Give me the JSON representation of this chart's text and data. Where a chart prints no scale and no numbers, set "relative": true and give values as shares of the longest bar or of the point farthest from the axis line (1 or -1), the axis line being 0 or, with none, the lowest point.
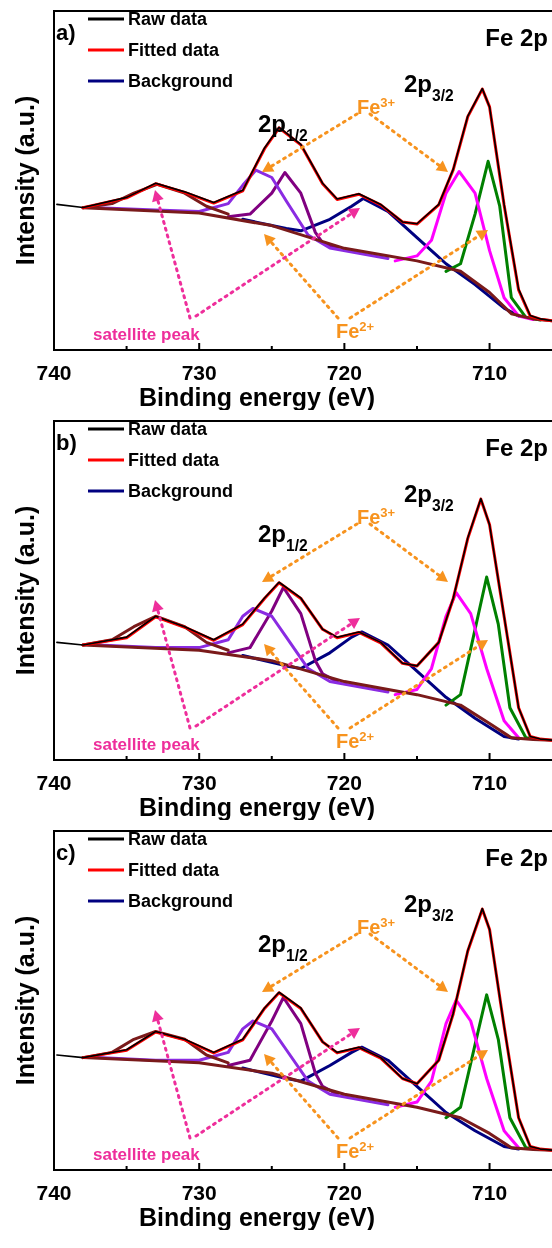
{
  "chart_data": [
    {
      "type": "line",
      "title": "a)",
      "xlabel": "Binding energy (eV)",
      "ylabel": "Intensity (a.u.)",
      "relative": true,
      "legend": "top left",
      "xlim": [
        740,
        705.7
      ],
      "xticks": [
        740,
        {
          "value": 735,
          "label": null
        },
        730,
        {
          "value": 725,
          "label": null
        },
        720,
        {
          "value": 715,
          "label": null
        },
        710
      ],
      "annotations": [
        "Fe 2p",
        "2p$_{1/2}$",
        "2p$_{3/2}$",
        "Fe$^{3+}$",
        "Fe$^{2+}$",
        "satellite peak"
      ],
      "series": [
        {
          "name": "Raw data",
          "color": "#000000",
          "x": [
            739.8,
            738,
            735,
            733,
            731,
            729,
            727,
            725.5,
            724.5,
            723,
            721.5,
            720.5,
            719,
            717.5,
            716,
            715,
            713.5,
            712.5,
            711.5,
            710.5,
            710,
            709,
            708,
            707.2,
            706.5,
            705.7
          ],
          "values": [
            0.557,
            0.545,
            0.584,
            0.638,
            0.605,
            0.564,
            0.611,
            0.773,
            0.852,
            0.787,
            0.638,
            0.578,
            0.598,
            0.557,
            0.49,
            0.483,
            0.557,
            0.692,
            0.895,
            1.0,
            0.93,
            0.557,
            0.233,
            0.132,
            0.119,
            0.112
          ]
        },
        {
          "name": "Fitted data",
          "color": "#ff0000",
          "x": [
            738,
            735,
            733,
            731,
            729,
            727,
            725.5,
            724.5,
            723,
            721.5,
            720.5,
            719,
            717.5,
            716,
            715,
            713.5,
            712.5,
            711.5,
            710.5,
            710,
            709,
            708,
            707.2,
            706.5,
            705.7
          ],
          "values": [
            0.544,
            0.582,
            0.636,
            0.603,
            0.562,
            0.609,
            0.77,
            0.85,
            0.785,
            0.636,
            0.576,
            0.596,
            0.555,
            0.49,
            0.482,
            0.555,
            0.69,
            0.893,
            0.998,
            0.93,
            0.555,
            0.23,
            0.13,
            0.118,
            0.112
          ]
        },
        {
          "name": "Background",
          "color": "#000080",
          "x": [
            727,
            724,
            723,
            721,
            719.5,
            718.7,
            717,
            715,
            713,
            711,
            709,
            708
          ],
          "values": [
            0.5,
            0.465,
            0.456,
            0.5,
            0.55,
            0.58,
            0.53,
            0.43,
            0.33,
            0.25,
            0.16,
            0.13
          ]
        },
        {
          "color": "#008000",
          "x": [
            713,
            712,
            711,
            710.1,
            709.3,
            708.5,
            707.5,
            706.5
          ],
          "values": [
            0.301,
            0.33,
            0.52,
            0.722,
            0.55,
            0.2,
            0.125,
            0.115
          ]
        },
        {
          "color": "#ff00ff",
          "x": [
            716.5,
            715,
            714,
            713,
            712.1,
            711,
            710,
            709,
            708,
            707
          ],
          "values": [
            0.341,
            0.36,
            0.42,
            0.6,
            0.683,
            0.6,
            0.38,
            0.2,
            0.13,
            0.117
          ]
        },
        {
          "color": "#800080",
          "x": [
            728,
            726.5,
            725,
            724.1,
            723,
            722,
            721.5,
            720.5
          ],
          "values": [
            0.51,
            0.52,
            0.6,
            0.679,
            0.6,
            0.45,
            0.41,
            0.39
          ]
        },
        {
          "color": "#8a2be2",
          "x": [
            737,
            733,
            730,
            728,
            727,
            726.1,
            725,
            724,
            722.5,
            721,
            719,
            717
          ],
          "values": [
            0.544,
            0.536,
            0.53,
            0.56,
            0.63,
            0.688,
            0.66,
            0.57,
            0.44,
            0.39,
            0.37,
            0.35
          ]
        },
        {
          "color": "#7a1a1a",
          "x": [
            738,
            736,
            734.5,
            732.9,
            731,
            729.5,
            728
          ],
          "values": [
            0.544,
            0.56,
            0.6,
            0.634,
            0.6,
            0.55,
            0.52
          ]
        },
        {
          "color": "#7a1a1a",
          "x": [
            738,
            730,
            725,
            720,
            715,
            712,
            710,
            708.5,
            707,
            705.7
          ],
          "values": [
            0.544,
            0.524,
            0.476,
            0.389,
            0.341,
            0.301,
            0.22,
            0.139,
            0.119,
            0.112
          ]
        }
      ]
    },
    {
      "type": "line",
      "title": "b)",
      "xlabel": "Binding energy (eV)",
      "ylabel": "Intensity (a.u.)",
      "relative": true,
      "legend": "top left",
      "xlim": [
        740,
        705.7
      ],
      "xticks": [
        740,
        {
          "value": 735,
          "label": null
        },
        730,
        {
          "value": 725,
          "label": null
        },
        720,
        {
          "value": 715,
          "label": null
        },
        710
      ],
      "annotations": [
        "Fe 2p",
        "2p$_{1/2}$",
        "2p$_{3/2}$",
        "Fe$^{3+}$",
        "Fe$^{2+}$",
        "satellite peak"
      ],
      "series": [
        {
          "name": "Raw data",
          "color": "#000000",
          "x": [
            739.8,
            738,
            735,
            733,
            731,
            729,
            727,
            725.5,
            724.5,
            723,
            721.5,
            720.5,
            719,
            717.5,
            716,
            715,
            713.5,
            712.5,
            711.5,
            710.6,
            710,
            709,
            708,
            707.2,
            706.5,
            705.7
          ],
          "values": [
            0.45,
            0.44,
            0.47,
            0.55,
            0.51,
            0.46,
            0.52,
            0.62,
            0.68,
            0.62,
            0.5,
            0.47,
            0.49,
            0.45,
            0.37,
            0.36,
            0.45,
            0.62,
            0.85,
            1.0,
            0.9,
            0.55,
            0.2,
            0.09,
            0.08,
            0.076
          ]
        },
        {
          "name": "Fitted data",
          "color": "#ff0000",
          "x": [
            738,
            735,
            733,
            731,
            729,
            727,
            725.5,
            724.5,
            723,
            721.5,
            720.5,
            719,
            717.5,
            716,
            715,
            713.5,
            712.5,
            711.5,
            710.6,
            710,
            709,
            708,
            707.2,
            706.5,
            705.7
          ],
          "values": [
            0.44,
            0.468,
            0.548,
            0.508,
            0.458,
            0.518,
            0.618,
            0.678,
            0.618,
            0.5,
            0.468,
            0.488,
            0.448,
            0.37,
            0.36,
            0.45,
            0.618,
            0.848,
            0.998,
            0.9,
            0.55,
            0.2,
            0.09,
            0.08,
            0.076
          ]
        },
        {
          "name": "Background",
          "color": "#000080",
          "x": [
            727,
            724,
            723,
            721,
            719.5,
            718.8,
            717,
            715,
            713,
            711,
            709,
            708
          ],
          "values": [
            0.4,
            0.36,
            0.35,
            0.41,
            0.47,
            0.49,
            0.44,
            0.34,
            0.24,
            0.16,
            0.09,
            0.08
          ]
        },
        {
          "color": "#008000",
          "x": [
            713,
            712,
            711,
            710.2,
            709.4,
            708.6,
            707.5,
            706.5
          ],
          "values": [
            0.21,
            0.25,
            0.5,
            0.7,
            0.52,
            0.2,
            0.085,
            0.078
          ]
        },
        {
          "color": "#ff00ff",
          "x": [
            716.5,
            715,
            714,
            713,
            712.3,
            711.3,
            710.2,
            709,
            708
          ],
          "values": [
            0.25,
            0.27,
            0.35,
            0.55,
            0.64,
            0.56,
            0.35,
            0.15,
            0.085
          ]
        },
        {
          "color": "#800080",
          "x": [
            728,
            726.5,
            725,
            724.2,
            723,
            722,
            721.5,
            720.5
          ],
          "values": [
            0.41,
            0.43,
            0.57,
            0.66,
            0.56,
            0.38,
            0.33,
            0.3
          ]
        },
        {
          "color": "#8a2be2",
          "x": [
            737,
            733,
            730,
            728,
            727,
            726.3,
            725,
            724,
            722.5,
            721,
            719,
            717
          ],
          "values": [
            0.44,
            0.43,
            0.43,
            0.46,
            0.55,
            0.58,
            0.55,
            0.47,
            0.35,
            0.3,
            0.28,
            0.26
          ]
        },
        {
          "color": "#7a1a1a",
          "x": [
            738,
            736,
            734.5,
            733,
            731,
            729.5,
            728
          ],
          "values": [
            0.44,
            0.46,
            0.51,
            0.55,
            0.51,
            0.45,
            0.42
          ]
        },
        {
          "color": "#7a1a1a",
          "x": [
            738,
            730,
            725,
            720,
            715,
            712,
            710,
            708.5,
            707,
            705.7
          ],
          "values": [
            0.44,
            0.42,
            0.38,
            0.3,
            0.25,
            0.21,
            0.14,
            0.085,
            0.078,
            0.076
          ]
        }
      ]
    },
    {
      "type": "line",
      "title": "c)",
      "xlabel": "Binding energy (eV)",
      "ylabel": "Intensity (a.u.)",
      "relative": true,
      "legend": "top left",
      "xlim": [
        740,
        705.7
      ],
      "xticks": [
        740,
        {
          "value": 735,
          "label": null
        },
        730,
        {
          "value": 725,
          "label": null
        },
        720,
        {
          "value": 715,
          "label": null
        },
        710
      ],
      "annotations": [
        "Fe 2p",
        "2p$_{1/2}$",
        "2p$_{3/2}$",
        "Fe$^{3+}$",
        "Fe$^{2+}$",
        "satellite peak"
      ],
      "series": [
        {
          "name": "Raw data",
          "color": "#000000",
          "x": [
            739.8,
            738,
            735,
            733,
            731,
            729,
            727,
            725.5,
            724.5,
            723,
            721.5,
            720.5,
            719,
            717.5,
            716,
            715,
            713.5,
            712.5,
            711.5,
            710.5,
            710,
            709,
            708,
            707.2,
            706.5,
            705.7
          ],
          "values": [
            0.44,
            0.43,
            0.46,
            0.53,
            0.5,
            0.45,
            0.5,
            0.62,
            0.68,
            0.62,
            0.49,
            0.45,
            0.47,
            0.43,
            0.35,
            0.33,
            0.42,
            0.6,
            0.84,
            1.0,
            0.92,
            0.55,
            0.2,
            0.09,
            0.08,
            0.076
          ]
        },
        {
          "name": "Fitted data",
          "color": "#ff0000",
          "x": [
            738,
            735,
            733,
            731,
            729,
            727,
            725.5,
            724.5,
            723,
            721.5,
            720.5,
            719,
            717.5,
            716,
            715,
            713.5,
            712.5,
            711.5,
            710.5,
            710,
            709,
            708,
            707.2,
            706.5,
            705.7
          ],
          "values": [
            0.43,
            0.458,
            0.528,
            0.498,
            0.448,
            0.498,
            0.618,
            0.678,
            0.618,
            0.49,
            0.448,
            0.468,
            0.428,
            0.35,
            0.33,
            0.42,
            0.598,
            0.838,
            0.998,
            0.92,
            0.55,
            0.2,
            0.09,
            0.08,
            0.076
          ]
        },
        {
          "name": "Background",
          "color": "#000080",
          "x": [
            727,
            724,
            723,
            721,
            719.5,
            718.8,
            717,
            715,
            713,
            711,
            709,
            708
          ],
          "values": [
            0.39,
            0.35,
            0.34,
            0.4,
            0.45,
            0.47,
            0.42,
            0.32,
            0.22,
            0.15,
            0.09,
            0.08
          ]
        },
        {
          "color": "#008000",
          "x": [
            713,
            712,
            711,
            710.2,
            709.4,
            708.6,
            707.5,
            706.5
          ],
          "values": [
            0.2,
            0.24,
            0.48,
            0.67,
            0.5,
            0.2,
            0.085,
            0.078
          ]
        },
        {
          "color": "#ff00ff",
          "x": [
            716.5,
            715,
            714,
            713,
            712.3,
            711.3,
            710.2,
            709,
            708
          ],
          "values": [
            0.24,
            0.26,
            0.34,
            0.56,
            0.65,
            0.57,
            0.35,
            0.15,
            0.085
          ]
        },
        {
          "color": "#800080",
          "x": [
            728,
            726.5,
            725,
            724.2,
            723,
            722,
            721.5,
            720.5
          ],
          "values": [
            0.4,
            0.42,
            0.57,
            0.66,
            0.56,
            0.37,
            0.32,
            0.29
          ]
        },
        {
          "color": "#8a2be2",
          "x": [
            737,
            733,
            730,
            728,
            727,
            726.3,
            725,
            724,
            722.5,
            721,
            719,
            717
          ],
          "values": [
            0.43,
            0.42,
            0.42,
            0.45,
            0.54,
            0.57,
            0.54,
            0.46,
            0.34,
            0.29,
            0.27,
            0.25
          ]
        },
        {
          "color": "#7a1a1a",
          "x": [
            738,
            736,
            734.5,
            733,
            731,
            729.5,
            728
          ],
          "values": [
            0.43,
            0.45,
            0.5,
            0.53,
            0.5,
            0.44,
            0.41
          ]
        },
        {
          "color": "#7a1a1a",
          "x": [
            738,
            730,
            725,
            720,
            715,
            712,
            710,
            708.5,
            707,
            705.7
          ],
          "values": [
            0.43,
            0.41,
            0.37,
            0.29,
            0.24,
            0.2,
            0.14,
            0.085,
            0.078,
            0.076
          ]
        }
      ]
    }
  ]
}
